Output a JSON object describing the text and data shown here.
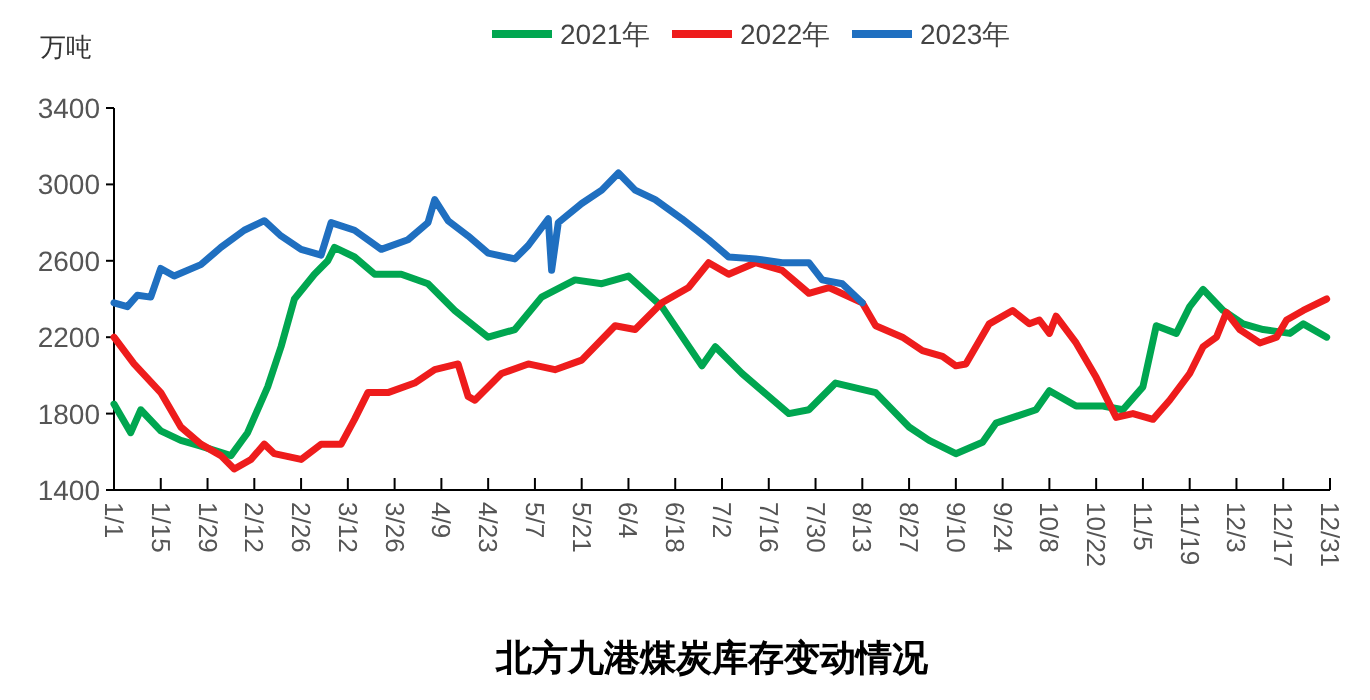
{
  "chart_data": {
    "type": "line",
    "title": "北方九港煤炭库存变动情况",
    "ylabel": "万吨",
    "legend": "top",
    "xlim": [
      "--01-01",
      "--12-31"
    ],
    "ylim": [
      1400,
      3400
    ],
    "yticks": [
      1400,
      1800,
      2200,
      2600,
      3000,
      3400
    ],
    "xticks": [
      {
        "value": "--01-01",
        "label": "1/1"
      },
      {
        "value": "--01-15",
        "label": "1/15"
      },
      {
        "value": "--01-29",
        "label": "1/29"
      },
      {
        "value": "--02-12",
        "label": "2/12"
      },
      {
        "value": "--02-26",
        "label": "2/26"
      },
      {
        "value": "--03-12",
        "label": "3/12"
      },
      {
        "value": "--03-26",
        "label": "3/26"
      },
      {
        "value": "--04-09",
        "label": "4/9"
      },
      {
        "value": "--04-23",
        "label": "4/23"
      },
      {
        "value": "--05-07",
        "label": "5/7"
      },
      {
        "value": "--05-21",
        "label": "5/21"
      },
      {
        "value": "--06-04",
        "label": "6/4"
      },
      {
        "value": "--06-18",
        "label": "6/18"
      },
      {
        "value": "--07-02",
        "label": "7/2"
      },
      {
        "value": "--07-16",
        "label": "7/16"
      },
      {
        "value": "--07-30",
        "label": "7/30"
      },
      {
        "value": "--08-13",
        "label": "8/13"
      },
      {
        "value": "--08-27",
        "label": "8/27"
      },
      {
        "value": "--09-10",
        "label": "9/10"
      },
      {
        "value": "--09-24",
        "label": "9/24"
      },
      {
        "value": "--10-08",
        "label": "10/8"
      },
      {
        "value": "--10-22",
        "label": "10/22"
      },
      {
        "value": "--11-05",
        "label": "11/5"
      },
      {
        "value": "--11-19",
        "label": "11/19"
      },
      {
        "value": "--12-03",
        "label": "12/3"
      },
      {
        "value": "--12-17",
        "label": "12/17"
      },
      {
        "value": "--12-31",
        "label": "12/31"
      }
    ],
    "series": [
      {
        "name": "2021年",
        "color": "#00a650",
        "x": [
          "--01-01",
          "--01-06",
          "--01-09",
          "--01-15",
          "--01-21",
          "--01-27",
          "--02-05",
          "--02-10",
          "--02-16",
          "--02-20",
          "--02-24",
          "--03-02",
          "--03-06",
          "--03-08",
          "--03-14",
          "--03-20",
          "--03-28",
          "--04-05",
          "--04-13",
          "--04-23",
          "--05-01",
          "--05-09",
          "--05-19",
          "--05-27",
          "--06-04",
          "--06-14",
          "--06-26",
          "--06-30",
          "--07-08",
          "--07-22",
          "--07-28",
          "--08-05",
          "--08-17",
          "--08-27",
          "--09-02",
          "--09-10",
          "--09-18",
          "--09-22",
          "--10-04",
          "--10-08",
          "--10-16",
          "--10-24",
          "--10-30",
          "--11-05",
          "--11-09",
          "--11-15",
          "--11-19",
          "--11-23",
          "--11-29",
          "--12-05",
          "--12-11",
          "--12-19",
          "--12-23",
          "--12-30"
        ],
        "values": [
          1850,
          1700,
          1820,
          1710,
          1660,
          1630,
          1580,
          1700,
          1940,
          2150,
          2400,
          2530,
          2600,
          2670,
          2620,
          2530,
          2530,
          2480,
          2340,
          2200,
          2240,
          2410,
          2500,
          2480,
          2520,
          2360,
          2050,
          2150,
          2010,
          1800,
          1820,
          1960,
          1910,
          1730,
          1660,
          1590,
          1650,
          1750,
          1820,
          1920,
          1840,
          1840,
          1820,
          1940,
          2260,
          2220,
          2360,
          2450,
          2340,
          2270,
          2240,
          2220,
          2270,
          2200
        ]
      },
      {
        "name": "2022年",
        "color": "#ee1c1c",
        "x": [
          "--01-01",
          "--01-07",
          "--01-15",
          "--01-21",
          "--01-27",
          "--02-02",
          "--02-06",
          "--02-11",
          "--02-15",
          "--02-18",
          "--02-26",
          "--03-04",
          "--03-10",
          "--03-14",
          "--03-18",
          "--03-24",
          "--04-01",
          "--04-07",
          "--04-14",
          "--04-17",
          "--04-19",
          "--04-27",
          "--05-05",
          "--05-13",
          "--05-21",
          "--05-31",
          "--06-06",
          "--06-14",
          "--06-22",
          "--06-28",
          "--07-04",
          "--07-12",
          "--07-20",
          "--07-28",
          "--08-03",
          "--08-13",
          "--08-17",
          "--08-25",
          "--08-31",
          "--09-06",
          "--09-10",
          "--09-13",
          "--09-20",
          "--09-27",
          "--10-02",
          "--10-05",
          "--10-08",
          "--10-10",
          "--10-16",
          "--10-22",
          "--10-28",
          "--11-02",
          "--11-08",
          "--11-13",
          "--11-19",
          "--11-23",
          "--11-27",
          "--11-30",
          "--12-04",
          "--12-10",
          "--12-15",
          "--12-18",
          "--12-23",
          "--12-30"
        ],
        "values": [
          2200,
          2060,
          1910,
          1730,
          1640,
          1580,
          1510,
          1560,
          1640,
          1590,
          1560,
          1640,
          1640,
          1770,
          1910,
          1910,
          1960,
          2030,
          2060,
          1890,
          1870,
          2010,
          2060,
          2030,
          2080,
          2260,
          2240,
          2380,
          2460,
          2590,
          2530,
          2590,
          2550,
          2430,
          2460,
          2380,
          2260,
          2200,
          2130,
          2100,
          2050,
          2060,
          2270,
          2340,
          2270,
          2290,
          2220,
          2310,
          2170,
          1990,
          1780,
          1800,
          1770,
          1870,
          2010,
          2150,
          2200,
          2330,
          2240,
          2170,
          2200,
          2290,
          2340,
          2400
        ]
      },
      {
        "name": "2023年",
        "color": "#1f6fc0",
        "x": [
          "--01-01",
          "--01-05",
          "--01-08",
          "--01-12",
          "--01-15",
          "--01-19",
          "--01-27",
          "--02-02",
          "--02-09",
          "--02-15",
          "--02-20",
          "--02-26",
          "--03-04",
          "--03-07",
          "--03-14",
          "--03-22",
          "--03-30",
          "--04-05",
          "--04-07",
          "--04-11",
          "--04-17",
          "--04-23",
          "--05-01",
          "--05-05",
          "--05-11",
          "--05-12",
          "--05-14",
          "--05-21",
          "--05-27",
          "--06-01",
          "--06-06",
          "--06-12",
          "--06-20",
          "--06-28",
          "--07-04",
          "--07-12",
          "--07-20",
          "--07-28",
          "--08-01",
          "--08-07",
          "--08-13"
        ],
        "values": [
          2380,
          2360,
          2420,
          2410,
          2560,
          2520,
          2580,
          2670,
          2760,
          2810,
          2730,
          2660,
          2630,
          2800,
          2760,
          2660,
          2710,
          2800,
          2920,
          2810,
          2730,
          2640,
          2610,
          2680,
          2820,
          2550,
          2800,
          2900,
          2970,
          3060,
          2970,
          2920,
          2820,
          2710,
          2620,
          2610,
          2590,
          2590,
          2500,
          2480,
          2380
        ]
      }
    ]
  }
}
